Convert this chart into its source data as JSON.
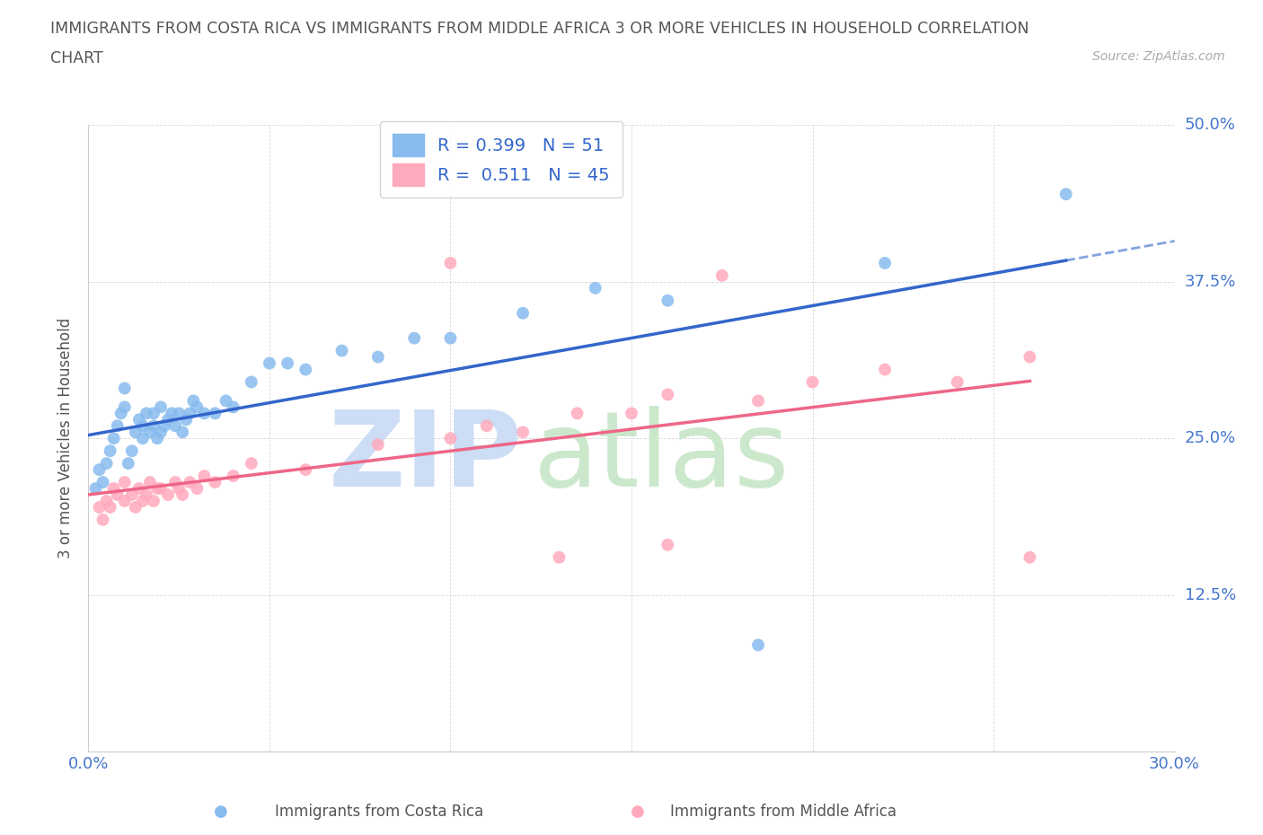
{
  "title_line1": "IMMIGRANTS FROM COSTA RICA VS IMMIGRANTS FROM MIDDLE AFRICA 3 OR MORE VEHICLES IN HOUSEHOLD CORRELATION",
  "title_line2": "CHART",
  "source": "Source: ZipAtlas.com",
  "ylabel": "3 or more Vehicles in Household",
  "xlim": [
    0.0,
    0.3
  ],
  "ylim": [
    0.0,
    0.5
  ],
  "color_blue": "#88BBEE",
  "color_pink": "#FFAABC",
  "color_blue_line": "#3366CC",
  "color_pink_line": "#EE6688",
  "R_blue": "0.399",
  "N_blue": "51",
  "R_pink": "0.511",
  "N_pink": "45",
  "background_color": "#ffffff",
  "blue_scatter_x": [
    0.002,
    0.003,
    0.004,
    0.005,
    0.006,
    0.007,
    0.008,
    0.009,
    0.01,
    0.01,
    0.011,
    0.012,
    0.013,
    0.014,
    0.015,
    0.015,
    0.016,
    0.017,
    0.018,
    0.018,
    0.019,
    0.02,
    0.02,
    0.021,
    0.022,
    0.023,
    0.024,
    0.025,
    0.026,
    0.027,
    0.028,
    0.029,
    0.03,
    0.032,
    0.035,
    0.038,
    0.04,
    0.045,
    0.05,
    0.055,
    0.06,
    0.07,
    0.08,
    0.09,
    0.1,
    0.12,
    0.14,
    0.16,
    0.185,
    0.22,
    0.27
  ],
  "blue_scatter_y": [
    0.21,
    0.225,
    0.215,
    0.23,
    0.24,
    0.25,
    0.26,
    0.27,
    0.275,
    0.29,
    0.23,
    0.24,
    0.255,
    0.265,
    0.25,
    0.26,
    0.27,
    0.255,
    0.26,
    0.27,
    0.25,
    0.255,
    0.275,
    0.26,
    0.265,
    0.27,
    0.26,
    0.27,
    0.255,
    0.265,
    0.27,
    0.28,
    0.275,
    0.27,
    0.27,
    0.28,
    0.275,
    0.295,
    0.31,
    0.31,
    0.305,
    0.32,
    0.315,
    0.33,
    0.33,
    0.35,
    0.37,
    0.36,
    0.085,
    0.39,
    0.445
  ],
  "pink_scatter_x": [
    0.003,
    0.004,
    0.005,
    0.006,
    0.007,
    0.008,
    0.01,
    0.01,
    0.012,
    0.013,
    0.014,
    0.015,
    0.016,
    0.017,
    0.018,
    0.019,
    0.02,
    0.022,
    0.024,
    0.025,
    0.026,
    0.028,
    0.03,
    0.032,
    0.035,
    0.04,
    0.045,
    0.06,
    0.08,
    0.1,
    0.11,
    0.12,
    0.135,
    0.15,
    0.16,
    0.175,
    0.185,
    0.2,
    0.22,
    0.24,
    0.26,
    0.1,
    0.13,
    0.16,
    0.26
  ],
  "pink_scatter_y": [
    0.195,
    0.185,
    0.2,
    0.195,
    0.21,
    0.205,
    0.2,
    0.215,
    0.205,
    0.195,
    0.21,
    0.2,
    0.205,
    0.215,
    0.2,
    0.21,
    0.21,
    0.205,
    0.215,
    0.21,
    0.205,
    0.215,
    0.21,
    0.22,
    0.215,
    0.22,
    0.23,
    0.225,
    0.245,
    0.25,
    0.26,
    0.255,
    0.27,
    0.27,
    0.285,
    0.38,
    0.28,
    0.295,
    0.305,
    0.295,
    0.315,
    0.39,
    0.155,
    0.165,
    0.155
  ]
}
